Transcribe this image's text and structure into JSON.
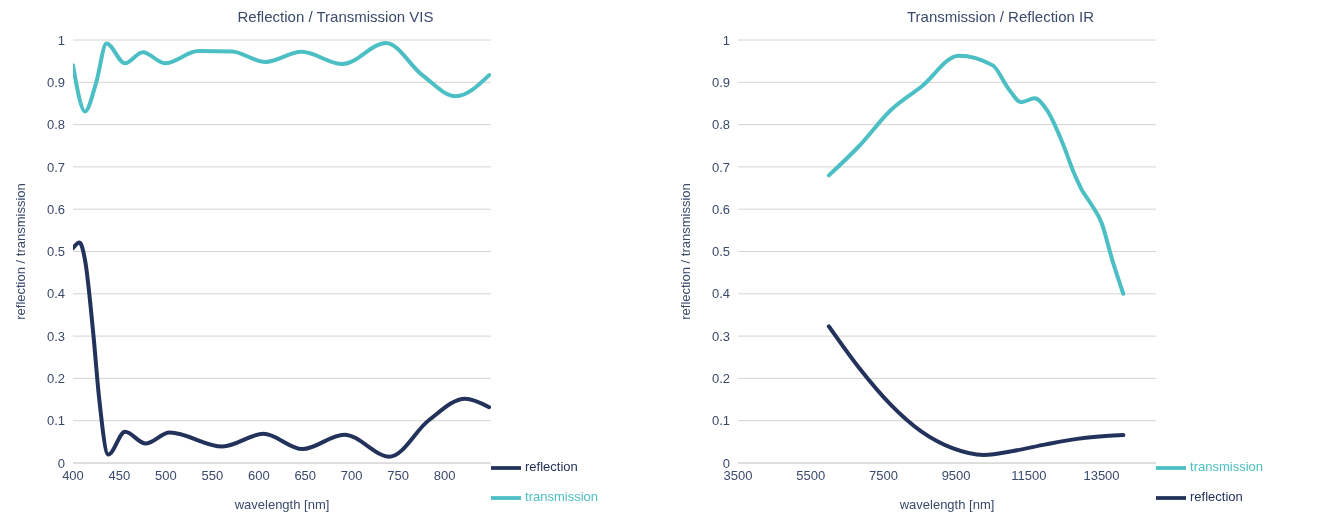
{
  "chart_data": [
    {
      "type": "line",
      "title": "Reflection / Transmission VIS",
      "xlabel": "wavelength [nm]",
      "ylabel": "reflection / transmission",
      "xlim": [
        400,
        850
      ],
      "xticks": [
        400,
        450,
        500,
        550,
        600,
        650,
        700,
        750,
        800
      ],
      "ylim": [
        0,
        1
      ],
      "yticks": [
        0,
        0.1,
        0.2,
        0.3,
        0.4,
        0.5,
        0.6,
        0.7,
        0.8,
        0.9,
        1
      ],
      "grid": "y",
      "legend": "bottom right",
      "marker": "none",
      "line_style": "solid",
      "series": [
        {
          "name": "reflection",
          "color": "#22325a",
          "x": [
            400,
            407,
            413,
            422,
            428,
            438,
            456,
            478,
            504,
            561,
            605,
            647,
            692,
            741,
            783,
            822,
            848
          ],
          "values": [
            0.508,
            0.521,
            0.479,
            0.302,
            0.156,
            0.02,
            0.074,
            0.046,
            0.072,
            0.039,
            0.069,
            0.033,
            0.067,
            0.015,
            0.101,
            0.152,
            0.132
          ]
        },
        {
          "name": "transmission",
          "color": "#4bbfc3",
          "x": [
            400,
            413,
            425,
            436,
            456,
            475,
            499,
            535,
            571,
            607,
            646,
            690,
            737,
            776,
            812,
            848
          ],
          "values": [
            0.94,
            0.831,
            0.9,
            0.992,
            0.945,
            0.971,
            0.945,
            0.974,
            0.973,
            0.948,
            0.972,
            0.943,
            0.993,
            0.917,
            0.867,
            0.917
          ]
        }
      ]
    },
    {
      "type": "line",
      "title": "Transmission / Reflection IR",
      "xlabel": "wavelength [nm]",
      "ylabel": "reflection / transmission",
      "xlim": [
        3500,
        15000
      ],
      "xticks": [
        3500,
        5500,
        7500,
        9500,
        11500,
        13500
      ],
      "ylim": [
        0,
        1
      ],
      "yticks": [
        0,
        0.1,
        0.2,
        0.3,
        0.4,
        0.5,
        0.6,
        0.7,
        0.8,
        0.9,
        1
      ],
      "grid": "y",
      "legend": "bottom right",
      "marker": "none",
      "line_style": "solid",
      "series": [
        {
          "name": "transmission",
          "color": "#4bbfc3",
          "x": [
            6000,
            6840,
            7700,
            8550,
            9570,
            10510,
            10940,
            11290,
            11660,
            12000,
            12440,
            12740,
            12950,
            13200,
            13500,
            13810,
            14100
          ],
          "values": [
            0.68,
            0.75,
            0.834,
            0.89,
            0.963,
            0.94,
            0.885,
            0.853,
            0.862,
            0.834,
            0.754,
            0.686,
            0.647,
            0.614,
            0.568,
            0.476,
            0.4
          ]
        },
        {
          "name": "reflection",
          "color": "#22325a",
          "x": [
            6000,
            6840,
            7700,
            8550,
            9400,
            10260,
            11110,
            11970,
            12830,
            14100
          ],
          "values": [
            0.323,
            0.224,
            0.138,
            0.074,
            0.035,
            0.019,
            0.029,
            0.044,
            0.057,
            0.066
          ]
        }
      ]
    }
  ]
}
